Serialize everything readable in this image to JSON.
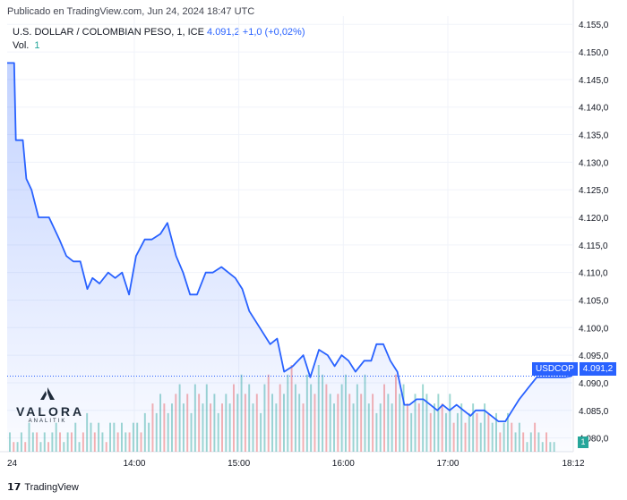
{
  "header": {
    "published": "Publicado en TradingView.com, Jun 24, 2024 18:47 UTC",
    "symbol_title": "U.S. DOLLAR / COLOMBIAN PESO, 1, ICE",
    "last_value": "4.091,2",
    "change": "+1,0 (+0,02%)",
    "vol_label": "Vol.",
    "vol_value": "1"
  },
  "tags": {
    "symbol": "USDCOP",
    "price": "4.091,2",
    "volume": "1"
  },
  "watermark": {
    "name": "VALORA",
    "sub": "ANALITIK"
  },
  "footer": {
    "brand": "TradingView"
  },
  "colors": {
    "line": "#2962ff",
    "area_top": "#2962ff",
    "vol_up": "#26a69a",
    "vol_down": "#ef5350",
    "grid": "#f0f3fa",
    "axis_text": "#131722"
  },
  "chart_data": {
    "type": "area",
    "title": "U.S. DOLLAR / COLOMBIAN PESO, 1, ICE",
    "x_ticks": [
      "24",
      "14:00",
      "15:00",
      "16:00",
      "17:00",
      "18:12"
    ],
    "y_ticks": [
      "4.155,0",
      "4.150,0",
      "4.145,0",
      "4.140,0",
      "4.135,0",
      "4.130,0",
      "4.125,0",
      "4.120,0",
      "4.115,0",
      "4.110,0",
      "4.105,0",
      "4.100,0",
      "4.095,0",
      "4.090,0",
      "4.085,0",
      "4.080,0"
    ],
    "ylim": [
      4077.5,
      4156.5
    ],
    "xlim_minutes": [
      767,
      1092
    ],
    "grid": true,
    "series": [
      {
        "x_minutes": [
          767,
          771,
          772,
          776,
          778,
          781,
          785,
          791,
          797,
          801,
          805,
          809,
          813,
          816,
          820,
          825,
          829,
          833,
          837,
          841,
          846,
          850,
          855,
          859,
          864,
          868,
          872,
          876,
          881,
          885,
          890,
          894,
          898,
          902,
          906,
          912,
          918,
          922,
          926,
          931,
          937,
          941,
          946,
          951,
          955,
          959,
          963,
          967,
          972,
          976,
          979,
          983,
          987,
          991,
          995,
          998,
          1002,
          1006,
          1010,
          1014,
          1017,
          1021,
          1025,
          1029,
          1033,
          1036,
          1041,
          1045,
          1049,
          1053,
          1057,
          1061,
          1066,
          1071,
          1075,
          1079,
          1083,
          1087,
          1091
        ],
        "y": [
          4148,
          4148,
          4134,
          4134,
          4127,
          4125,
          4120,
          4120,
          4116,
          4113,
          4112,
          4112,
          4107,
          4109,
          4108,
          4110,
          4109,
          4110,
          4106,
          4113,
          4116,
          4116,
          4117,
          4119,
          4113,
          4110,
          4106,
          4106,
          4110,
          4110,
          4111,
          4110,
          4109,
          4107,
          4103,
          4100,
          4097,
          4098,
          4092,
          4093,
          4095,
          4091,
          4096,
          4095,
          4093,
          4095,
          4094,
          4092,
          4094,
          4094,
          4097,
          4097,
          4094,
          4092,
          4086,
          4086,
          4087,
          4087,
          4086,
          4085,
          4086,
          4085,
          4086,
          4085,
          4084,
          4085,
          4085,
          4084,
          4083,
          4083,
          4085,
          4087,
          4089,
          4091,
          4091,
          4091,
          4091,
          4091,
          4091.2
        ]
      }
    ],
    "volume": {
      "values": [
        2,
        1,
        1,
        2,
        1,
        3,
        2,
        2,
        1,
        2,
        1,
        2,
        3,
        2,
        1,
        2,
        2,
        3,
        1,
        2,
        4,
        3,
        2,
        3,
        2,
        1,
        3,
        3,
        2,
        3,
        2,
        2,
        3,
        3,
        2,
        4,
        3,
        5,
        4,
        6,
        5,
        4,
        5,
        6,
        7,
        5,
        6,
        4,
        7,
        6,
        5,
        7,
        5,
        6,
        4,
        5,
        6,
        5,
        7,
        6,
        8,
        6,
        7,
        5,
        6,
        4,
        7,
        8,
        6,
        5,
        7,
        6,
        8,
        9,
        7,
        6,
        5,
        8,
        7,
        6,
        9,
        8,
        7,
        6,
        5,
        6,
        7,
        8,
        6,
        5,
        7,
        6,
        8,
        5,
        6,
        4,
        5,
        7,
        6,
        5,
        8,
        6,
        7,
        5,
        4,
        6,
        5,
        7,
        6,
        4,
        5,
        6,
        5,
        4,
        6,
        3,
        4,
        5,
        3,
        4,
        5,
        4,
        3,
        5,
        4,
        3,
        4,
        2,
        3,
        4,
        3,
        2,
        3,
        2,
        1,
        2,
        3,
        2,
        1,
        2,
        1,
        1
      ],
      "last": 1
    }
  }
}
